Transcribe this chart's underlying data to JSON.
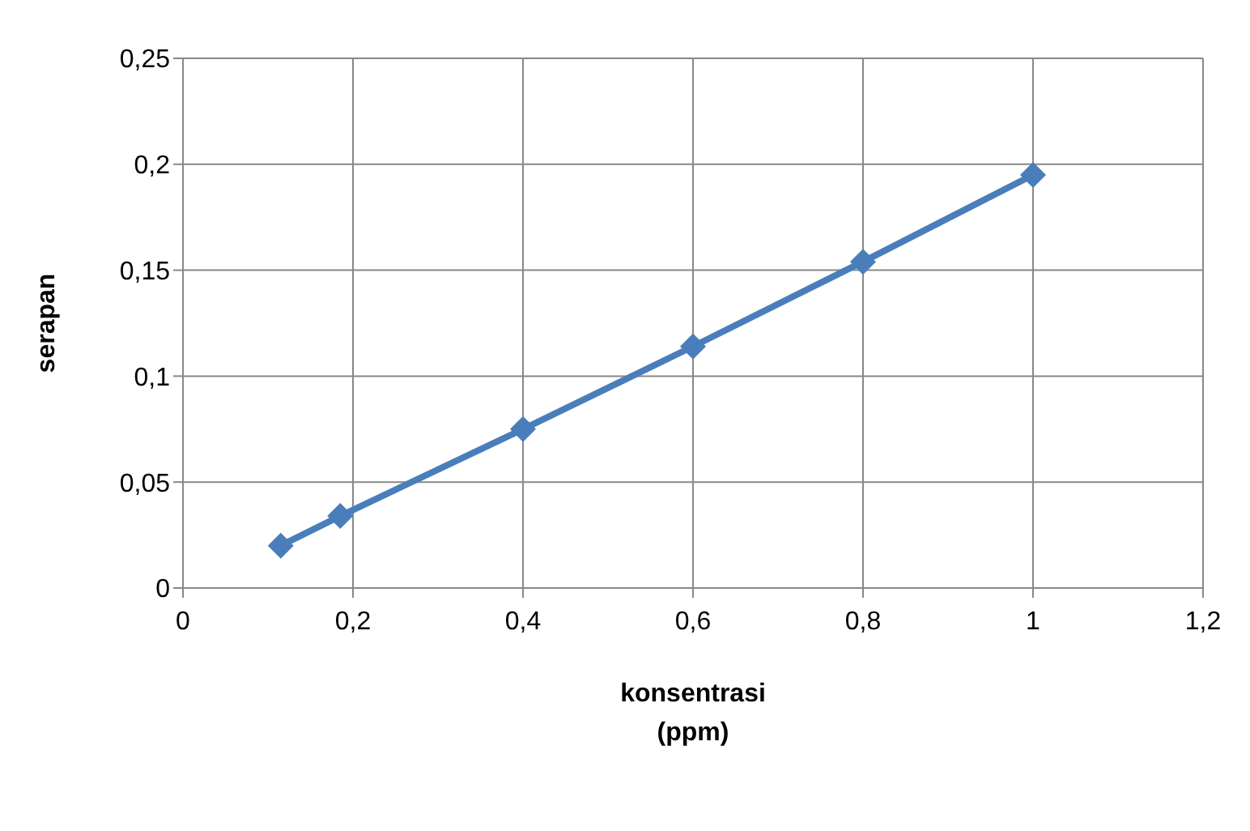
{
  "chart_data": {
    "type": "line",
    "xlabel": "konsentrasi\n(ppm)",
    "ylabel": "serapan",
    "x": [
      0.115,
      0.185,
      0.4,
      0.6,
      0.8,
      1.0
    ],
    "series": [
      {
        "color": "#4a7ebb",
        "values": [
          0.02,
          0.034,
          0.075,
          0.114,
          0.154,
          0.195
        ]
      }
    ],
    "xlim": [
      0,
      1.2
    ],
    "xticks": [
      0,
      {
        "value": 0.2,
        "label": "0,2"
      },
      {
        "value": 0.4,
        "label": "0,4"
      },
      {
        "value": 0.6,
        "label": "0,6"
      },
      {
        "value": 0.8,
        "label": "0,8"
      },
      {
        "value": 1,
        "label": "1"
      },
      {
        "value": 1.2,
        "label": "1,2"
      }
    ],
    "ylim": [
      0,
      0.25
    ],
    "yticks": [
      0,
      {
        "value": 0.05,
        "label": "0,05"
      },
      {
        "value": 0.1,
        "label": "0,1"
      },
      {
        "value": 0.15,
        "label": "0,15"
      },
      {
        "value": 0.2,
        "label": "0,2"
      },
      {
        "value": 0.25,
        "label": "0,25"
      }
    ],
    "grid": true,
    "marker": "diamond",
    "line_style": "solid",
    "legend": false
  }
}
